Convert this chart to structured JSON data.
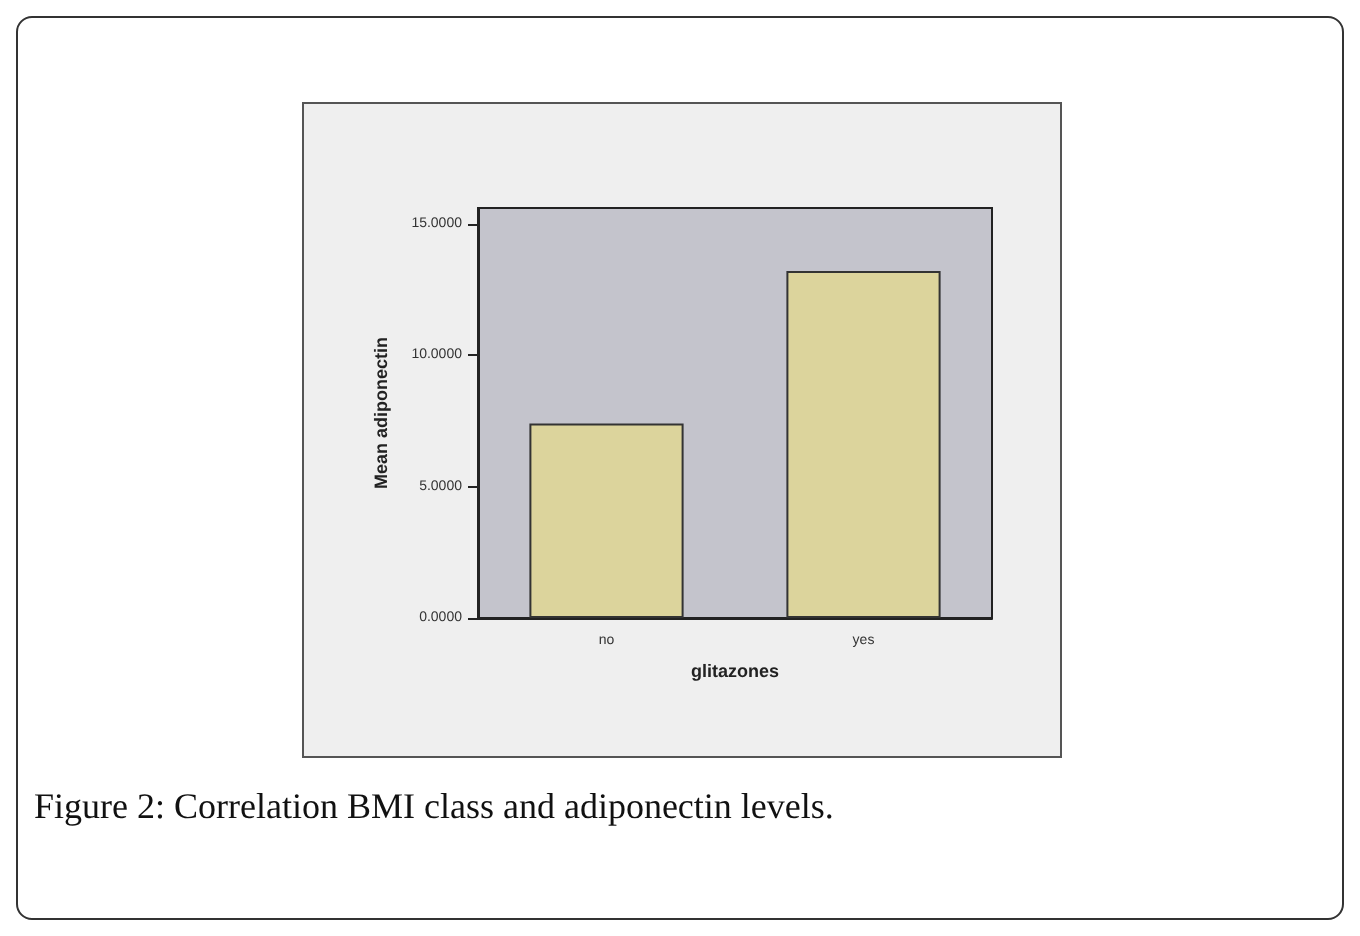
{
  "chart_data": {
    "type": "bar",
    "xlabel": "glitazones",
    "ylabel": "Mean adiponectin",
    "categories": [
      "no",
      "yes"
    ],
    "series": [
      {
        "color": "#dcd49c",
        "values": [
          7.4,
          13.2
        ]
      }
    ],
    "ylim": [
      0,
      15.6
    ],
    "yticks": [
      {
        "value": 0,
        "label": "0.0000"
      },
      {
        "value": 5,
        "label": "5.0000"
      },
      {
        "value": 10,
        "label": "10.0000"
      },
      {
        "value": 15,
        "label": "15.0000"
      }
    ],
    "annotations": [
      "Figure 2: Correlation BMI class and adiponectin levels."
    ]
  }
}
